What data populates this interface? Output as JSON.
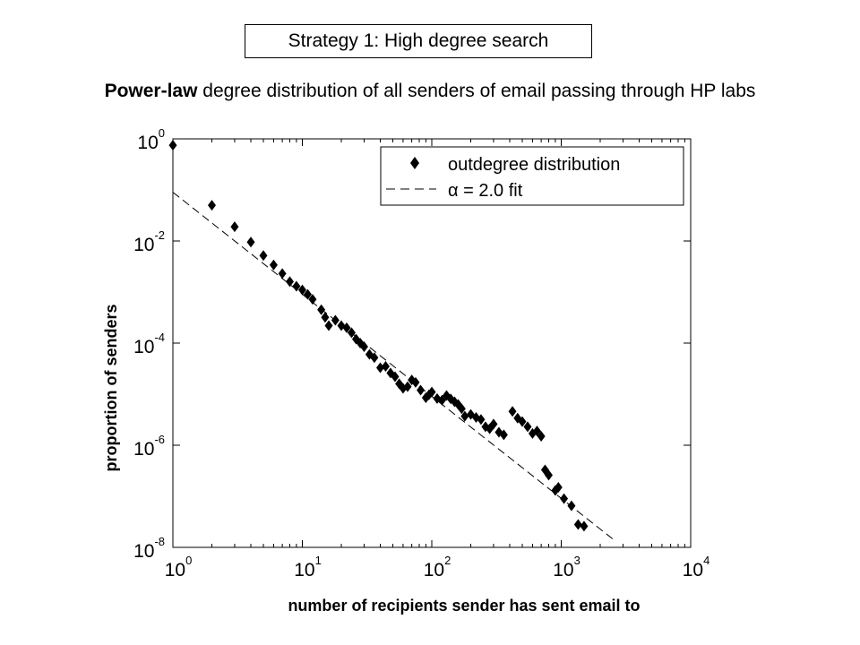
{
  "header": {
    "boxed_title": "Strategy 1: High degree search",
    "subtitle_bold": "Power-law",
    "subtitle_rest": " degree distribution of all senders of email passing through HP labs"
  },
  "chart_data": {
    "type": "scatter",
    "xscale": "log",
    "yscale": "log",
    "xlabel": "number of recipients sender has sent email to",
    "ylabel": "proportion of senders",
    "xlim": [
      1,
      10000
    ],
    "ylim": [
      1e-08,
      1
    ],
    "x_ticks": [
      {
        "base": "10",
        "exp": "0",
        "value": 1
      },
      {
        "base": "10",
        "exp": "1",
        "value": 10
      },
      {
        "base": "10",
        "exp": "2",
        "value": 100
      },
      {
        "base": "10",
        "exp": "3",
        "value": 1000
      },
      {
        "base": "10",
        "exp": "4",
        "value": 10000
      }
    ],
    "y_ticks": [
      {
        "base": "10",
        "exp": "0",
        "value": 1
      },
      {
        "base": "10",
        "exp": "-2",
        "value": 0.01
      },
      {
        "base": "10",
        "exp": "-4",
        "value": 0.0001
      },
      {
        "base": "10",
        "exp": "-6",
        "value": 1e-06
      },
      {
        "base": "10",
        "exp": "-8",
        "value": 1e-08
      }
    ],
    "legend_position": "top-right",
    "series": [
      {
        "name": "outdegree distribution",
        "marker": "diamond",
        "color": "#000000",
        "points": [
          [
            1,
            0.75
          ],
          [
            2,
            0.05
          ],
          [
            3,
            0.019
          ],
          [
            4,
            0.0095
          ],
          [
            5,
            0.0052
          ],
          [
            6,
            0.0034
          ],
          [
            7,
            0.0023
          ],
          [
            8,
            0.0016
          ],
          [
            9,
            0.0013
          ],
          [
            10,
            0.0011
          ],
          [
            11,
            0.0009
          ],
          [
            12,
            0.00072
          ],
          [
            14,
            0.00045
          ],
          [
            15,
            0.00032
          ],
          [
            16,
            0.00022
          ],
          [
            18,
            0.00028
          ],
          [
            20,
            0.00022
          ],
          [
            22,
            0.0002
          ],
          [
            24,
            0.00016
          ],
          [
            26,
            0.00012
          ],
          [
            28,
            0.0001
          ],
          [
            30,
            8.5e-05
          ],
          [
            33,
            6e-05
          ],
          [
            36,
            5.2e-05
          ],
          [
            40,
            3.3e-05
          ],
          [
            44,
            3.5e-05
          ],
          [
            48,
            2.6e-05
          ],
          [
            52,
            2.2e-05
          ],
          [
            56,
            1.6e-05
          ],
          [
            60,
            1.3e-05
          ],
          [
            65,
            1.4e-05
          ],
          [
            70,
            1.9e-05
          ],
          [
            75,
            1.7e-05
          ],
          [
            82,
            1.2e-05
          ],
          [
            90,
            8.5e-06
          ],
          [
            95,
            9.7e-06
          ],
          [
            100,
            1.1e-05
          ],
          [
            110,
            8.2e-06
          ],
          [
            120,
            7.6e-06
          ],
          [
            130,
            9.4e-06
          ],
          [
            140,
            8.1e-06
          ],
          [
            150,
            7.1e-06
          ],
          [
            160,
            6.3e-06
          ],
          [
            170,
            5.2e-06
          ],
          [
            180,
            3.7e-06
          ],
          [
            200,
            4e-06
          ],
          [
            220,
            3.5e-06
          ],
          [
            240,
            3.2e-06
          ],
          [
            260,
            2.3e-06
          ],
          [
            280,
            2.1e-06
          ],
          [
            300,
            2.6e-06
          ],
          [
            330,
            1.8e-06
          ],
          [
            360,
            1.6e-06
          ],
          [
            420,
            4.6e-06
          ],
          [
            460,
            3.4e-06
          ],
          [
            500,
            2.9e-06
          ],
          [
            550,
            2.3e-06
          ],
          [
            600,
            1.7e-06
          ],
          [
            650,
            1.9e-06
          ],
          [
            700,
            1.5e-06
          ],
          [
            750,
            3.3e-07
          ],
          [
            800,
            2.6e-07
          ],
          [
            900,
            1.3e-07
          ],
          [
            950,
            1.5e-07
          ],
          [
            1050,
            9e-08
          ],
          [
            1200,
            6.5e-08
          ],
          [
            1350,
            2.8e-08
          ],
          [
            1500,
            2.6e-08
          ]
        ]
      },
      {
        "name": "α = 2.0 fit",
        "line_style": "dashed",
        "color": "#000000",
        "points": [
          [
            1,
            0.09
          ],
          [
            2600,
            1.35e-08
          ]
        ]
      }
    ]
  }
}
